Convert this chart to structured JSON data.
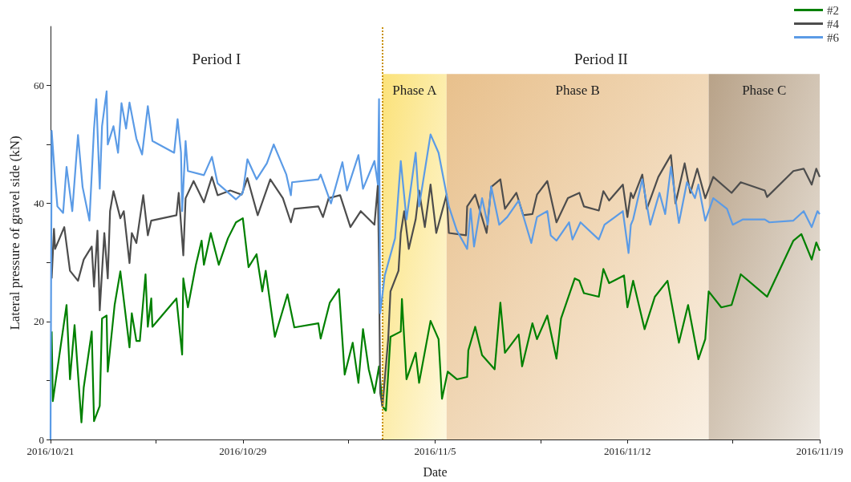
{
  "chart_data": {
    "type": "line",
    "xlabel": "Date",
    "ylabel": "Lateral pressure of gravel side (kN)",
    "annotations": [
      "Period I",
      "Period II"
    ],
    "xlim": [
      "2016-10-22",
      "2016-11-19"
    ],
    "xticks": [
      {
        "value": "2016-10-22",
        "label": "2016/10/21"
      },
      {
        "value": "2016-10-25T20:00",
        "label": null
      },
      {
        "value": "2016-10-29",
        "label": "2016/10/29"
      },
      {
        "value": "2016-11-01T20:00",
        "label": null
      },
      {
        "value": "2016-11-05",
        "label": "2016/11/5"
      },
      {
        "value": "2016-11-08T20:00",
        "label": null
      },
      {
        "value": "2016-11-12",
        "label": "2016/11/12"
      },
      {
        "value": "2016-11-15T20:00",
        "label": null
      },
      {
        "value": "2016-11-19",
        "label": "2016/11/19"
      }
    ],
    "ylim": [
      0,
      70
    ],
    "yticks": [
      0,
      {
        "value": 10,
        "label": null
      },
      20,
      {
        "value": 30,
        "label": null
      },
      40,
      {
        "value": 50,
        "label": null
      },
      60
    ],
    "legend": "top right",
    "ref_lines": [
      {
        "axis": "x",
        "value": "2016-11-03T02:00",
        "color": "#c8900a",
        "line_style": "dotted"
      }
    ],
    "bands": [
      {
        "axis": "x",
        "from": "2016-11-03T02:00",
        "to": "2016-11-05T10:00",
        "label": "Phase A",
        "color": "#fbe27a"
      },
      {
        "axis": "x",
        "from": "2016-11-05T10:00",
        "to": "2016-11-14T23:00",
        "label": "Phase B",
        "color": "#e8c08c"
      },
      {
        "axis": "x",
        "from": "2016-11-14T23:00",
        "to": "2016-11-19",
        "label": "Phase C",
        "color": "#b8a288"
      }
    ],
    "series": [
      {
        "name": "#2",
        "color": "#008000",
        "x": [
          "2016-10-22T01:00",
          "2016-10-22T02:00",
          "2016-10-22T14:00",
          "2016-10-22T17:00",
          "2016-10-22T21:00",
          "2016-10-23T03:00",
          "2016-10-23T05:00",
          "2016-10-23T12:00",
          "2016-10-23T14:00",
          "2016-10-23T19:00",
          "2016-10-23T21:00",
          "2016-10-24T01:00",
          "2016-10-24T02:00",
          "2016-10-24T08:00",
          "2016-10-24T13:00",
          "2016-10-24T21:00",
          "2016-10-24T23:00",
          "2016-10-25T03:00",
          "2016-10-25T06:00",
          "2016-10-25T11:00",
          "2016-10-25T13:00",
          "2016-10-25T16:00",
          "2016-10-25T17:00",
          "2016-10-26T14:00",
          "2016-10-26T19:00",
          "2016-10-26T20:00",
          "2016-10-27T00:00",
          "2016-10-27T07:00",
          "2016-10-27T12:00",
          "2016-10-27T14:00",
          "2016-10-27T20:00",
          "2016-10-28T03:00",
          "2016-10-28T11:00",
          "2016-10-28T18:00",
          "2016-10-29T00:00",
          "2016-10-29T05:00",
          "2016-10-29T12:00",
          "2016-10-29T17:00",
          "2016-10-29T20:00",
          "2016-10-30T04:00",
          "2016-10-30T15:00",
          "2016-10-30T21:00",
          "2016-10-31T18:00",
          "2016-10-31T20:00",
          "2016-11-01T04:00",
          "2016-11-01T12:00",
          "2016-11-01T17:00",
          "2016-11-02T00:00",
          "2016-11-02T05:00",
          "2016-11-02T09:00",
          "2016-11-02T14:00",
          "2016-11-02T19:00",
          "2016-11-02T23:00",
          "2016-11-03T02:00",
          "2016-11-03T05:00",
          "2016-11-03T09:00",
          "2016-11-03T18:00",
          "2016-11-03T19:00",
          "2016-11-03T23:00",
          "2016-11-04T07:00",
          "2016-11-04T10:00",
          "2016-11-04T20:00",
          "2016-11-05T03:00",
          "2016-11-05T06:00",
          "2016-11-05T11:00",
          "2016-11-05T19:00",
          "2016-11-06T04:00",
          "2016-11-06T05:00",
          "2016-11-06T11:00",
          "2016-11-06T17:00",
          "2016-11-07T04:00",
          "2016-11-07T09:00",
          "2016-11-07T13:00",
          "2016-11-08T01:00",
          "2016-11-08T04:00",
          "2016-11-08T13:00",
          "2016-11-08T17:00",
          "2016-11-09T02:00",
          "2016-11-09T10:00",
          "2016-11-09T14:00",
          "2016-11-10T02:00",
          "2016-11-10T06:00",
          "2016-11-10T10:00",
          "2016-11-10T23:00",
          "2016-11-11T03:00",
          "2016-11-11T08:00",
          "2016-11-11T21:00",
          "2016-11-12T00:00",
          "2016-11-12T05:00",
          "2016-11-12T15:00",
          "2016-11-13T00:00",
          "2016-11-13T11:00",
          "2016-11-13T21:00",
          "2016-11-14T05:00",
          "2016-11-14T14:00",
          "2016-11-14T20:00",
          "2016-11-14T23:00",
          "2016-11-15T10:00",
          "2016-11-15T19:00",
          "2016-11-16T03:00",
          "2016-11-17T02:00",
          "2016-11-18T01:00",
          "2016-11-18T08:00",
          "2016-11-18T17:00",
          "2016-11-18T21:00",
          "2016-11-19T00:00"
        ],
        "values": [
          18.3,
          6.5,
          22.8,
          10.2,
          19.4,
          2.9,
          8.8,
          18.3,
          3.1,
          5.7,
          20.5,
          21,
          11.5,
          22.8,
          28.5,
          15.6,
          21.4,
          16.7,
          16.7,
          28,
          19.1,
          23.9,
          19.1,
          23.9,
          14.4,
          27.3,
          22.4,
          29.6,
          33.7,
          29.6,
          35,
          29.6,
          34.1,
          36.8,
          37.5,
          29.2,
          31.4,
          25.1,
          28.6,
          17.4,
          24.6,
          19,
          19.7,
          17.1,
          23.2,
          25.5,
          11,
          16.4,
          9.6,
          18.7,
          11.9,
          7.9,
          12.4,
          5.6,
          4.9,
          17.4,
          18.3,
          23.8,
          10.2,
          14.7,
          9.6,
          20.1,
          17,
          6.9,
          11.5,
          10.2,
          10.6,
          15.1,
          19.1,
          14.3,
          11.9,
          23.2,
          14.7,
          17.8,
          12.4,
          19.7,
          17,
          21,
          13.7,
          20.5,
          27.3,
          26.9,
          24.8,
          24.2,
          28.9,
          26.5,
          27.8,
          22.4,
          26.9,
          18.7,
          24.2,
          26.9,
          16.4,
          22.8,
          13.6,
          17,
          25.1,
          22.4,
          22.8,
          28,
          24.2,
          33.7,
          34.8,
          30.5,
          33.4,
          32
        ]
      },
      {
        "name": "#4",
        "color": "#4d4d4d",
        "x": [
          "2016-10-22T01:00",
          "2016-10-22T03:00",
          "2016-10-22T04:00",
          "2016-10-22T12:00",
          "2016-10-22T17:00",
          "2016-10-23T00:00",
          "2016-10-23T05:00",
          "2016-10-23T12:00",
          "2016-10-23T14:00",
          "2016-10-23T17:00",
          "2016-10-23T19:00",
          "2016-10-23T23:00",
          "2016-10-24T02:00",
          "2016-10-24T04:00",
          "2016-10-24T07:00",
          "2016-10-24T13:00",
          "2016-10-24T16:00",
          "2016-10-24T21:00",
          "2016-10-24T23:00",
          "2016-10-25T03:00",
          "2016-10-25T09:00",
          "2016-10-25T13:00",
          "2016-10-25T16:00",
          "2016-10-26T14:00",
          "2016-10-26T16:00",
          "2016-10-26T20:00",
          "2016-10-26T22:00",
          "2016-10-27T05:00",
          "2016-10-27T14:00",
          "2016-10-27T21:00",
          "2016-10-28T02:00",
          "2016-10-28T13:00",
          "2016-10-28T23:00",
          "2016-10-29T04:00",
          "2016-10-29T13:00",
          "2016-10-30T00:00",
          "2016-10-30T11:00",
          "2016-10-30T18:00",
          "2016-10-30T21:00",
          "2016-10-31T18:00",
          "2016-10-31T22:00",
          "2016-11-01T03:00",
          "2016-11-01T13:00",
          "2016-11-01T22:00",
          "2016-11-02T07:00",
          "2016-11-02T19:00",
          "2016-11-02T22:00",
          "2016-11-02T23:00",
          "2016-11-03T00:00",
          "2016-11-03T02:00",
          "2016-11-03T07:00",
          "2016-11-03T09:00",
          "2016-11-03T16:00",
          "2016-11-03T18:00",
          "2016-11-03T21:00",
          "2016-11-04T01:00",
          "2016-11-04T07:00",
          "2016-11-04T10:00",
          "2016-11-04T15:00",
          "2016-11-04T20:00",
          "2016-11-05T01:00",
          "2016-11-05T10:00",
          "2016-11-05T12:00",
          "2016-11-06T03:00",
          "2016-11-06T04:00",
          "2016-11-06T11:00",
          "2016-11-06T21:00",
          "2016-11-07T01:00",
          "2016-11-07T09:00",
          "2016-11-07T13:00",
          "2016-11-07T23:00",
          "2016-11-08T05:00",
          "2016-11-08T13:00",
          "2016-11-08T17:00",
          "2016-11-09T02:00",
          "2016-11-09T10:00",
          "2016-11-09T20:00",
          "2016-11-10T06:00",
          "2016-11-10T10:00",
          "2016-11-10T23:00",
          "2016-11-11T03:00",
          "2016-11-11T08:00",
          "2016-11-11T20:00",
          "2016-11-12T00:00",
          "2016-11-12T03:00",
          "2016-11-12T05:00",
          "2016-11-12T13:00",
          "2016-11-12T17:00",
          "2016-11-13T03:00",
          "2016-11-13T14:00",
          "2016-11-13T18:00",
          "2016-11-14T02:00",
          "2016-11-14T07:00",
          "2016-11-14T13:00",
          "2016-11-14T20:00",
          "2016-11-15T03:00",
          "2016-11-15T19:00",
          "2016-11-16T03:00",
          "2016-11-17T00:00",
          "2016-11-17T02:00",
          "2016-11-18T01:00",
          "2016-11-18T10:00",
          "2016-11-18T17:00",
          "2016-11-18T21:00",
          "2016-11-19T00:00"
        ],
        "values": [
          27.3,
          35.7,
          32.3,
          36,
          28.6,
          26.9,
          30.5,
          32.7,
          25.9,
          35.4,
          21.9,
          35,
          27.3,
          38.7,
          42.1,
          37.5,
          38.7,
          29.9,
          35,
          33.3,
          41.4,
          34.6,
          37.1,
          38,
          41.8,
          31.2,
          40.9,
          43.8,
          40.2,
          44.5,
          41.4,
          42.2,
          41.5,
          44.3,
          38,
          44.1,
          40.9,
          36.8,
          39.1,
          39.5,
          37.7,
          40.9,
          41.4,
          36,
          38.7,
          36.4,
          43.2,
          29.2,
          7.9,
          5.6,
          17,
          25.1,
          28.6,
          35,
          38.7,
          32.3,
          37.3,
          42.2,
          36,
          43.2,
          35,
          41.5,
          35,
          34.6,
          39.5,
          41.5,
          35,
          42.8,
          44.1,
          39.1,
          41.8,
          38,
          38.2,
          41.5,
          43.8,
          36.8,
          40.9,
          41.8,
          39.5,
          38.8,
          42.1,
          40.5,
          43.2,
          37.7,
          41.8,
          40.9,
          44.9,
          39.1,
          44.5,
          48.2,
          40,
          46.8,
          41.8,
          45.9,
          40.9,
          44.5,
          41.8,
          43.6,
          42.2,
          41.1,
          45.5,
          45.9,
          43.2,
          45.9,
          44.5
        ]
      },
      {
        "name": "#6",
        "color": "#5b9be6",
        "x": [
          "2016-10-22T00:00",
          "2016-10-22T01:00",
          "2016-10-22T04:00",
          "2016-10-22T06:00",
          "2016-10-22T11:00",
          "2016-10-22T14:00",
          "2016-10-22T19:00",
          "2016-10-23T00:00",
          "2016-10-23T04:00",
          "2016-10-23T10:00",
          "2016-10-23T14:00",
          "2016-10-23T16:00",
          "2016-10-23T19:00",
          "2016-10-23T21:00",
          "2016-10-24T01:00",
          "2016-10-24T02:00",
          "2016-10-24T07:00",
          "2016-10-24T11:00",
          "2016-10-24T14:00",
          "2016-10-24T18:00",
          "2016-10-24T21:00",
          "2016-10-25T03:00",
          "2016-10-25T08:00",
          "2016-10-25T13:00",
          "2016-10-25T17:00",
          "2016-10-26T12:00",
          "2016-10-26T15:00",
          "2016-10-26T18:00",
          "2016-10-26T19:00",
          "2016-10-26T22:00",
          "2016-10-27T00:00",
          "2016-10-27T14:00",
          "2016-10-27T21:00",
          "2016-10-28T02:00",
          "2016-10-28T18:00",
          "2016-10-29T00:00",
          "2016-10-29T04:00",
          "2016-10-29T12:00",
          "2016-10-29T21:00",
          "2016-10-30T03:00",
          "2016-10-30T14:00",
          "2016-10-30T18:00",
          "2016-10-30T19:00",
          "2016-10-31T18:00",
          "2016-10-31T20:00",
          "2016-11-01T05:00",
          "2016-11-01T15:00",
          "2016-11-01T19:00",
          "2016-11-02T05:00",
          "2016-11-02T09:00",
          "2016-11-02T19:00",
          "2016-11-02T22:00",
          "2016-11-02T23:00",
          "2016-11-03T00:00",
          "2016-11-03T04:00",
          "2016-11-03T13:00",
          "2016-11-03T18:00",
          "2016-11-03T23:00",
          "2016-11-04T07:00",
          "2016-11-04T10:00",
          "2016-11-04T20:00",
          "2016-11-05T03:00",
          "2016-11-05T12:00",
          "2016-11-05T19:00",
          "2016-11-06T04:00",
          "2016-11-06T07:00",
          "2016-11-06T10:00",
          "2016-11-06T17:00",
          "2016-11-06T22:00",
          "2016-11-07T01:00",
          "2016-11-07T08:00",
          "2016-11-07T15:00",
          "2016-11-08T01:00",
          "2016-11-08T12:00",
          "2016-11-08T17:00",
          "2016-11-09T02:00",
          "2016-11-09T05:00",
          "2016-11-09T10:00",
          "2016-11-09T21:00",
          "2016-11-10T00:00",
          "2016-11-10T07:00",
          "2016-11-10T23:00",
          "2016-11-11T04:00",
          "2016-11-11T20:00",
          "2016-11-12T01:00",
          "2016-11-12T03:00",
          "2016-11-12T05:00",
          "2016-11-12T13:00",
          "2016-11-12T20:00",
          "2016-11-13T04:00",
          "2016-11-13T09:00",
          "2016-11-13T14:00",
          "2016-11-13T21:00",
          "2016-11-14T04:00",
          "2016-11-14T11:00",
          "2016-11-14T14:00",
          "2016-11-14T20:00",
          "2016-11-15T03:00",
          "2016-11-15T15:00",
          "2016-11-15T20:00",
          "2016-11-16T05:00",
          "2016-11-17T00:00",
          "2016-11-17T04:00",
          "2016-11-18T01:00",
          "2016-11-18T10:00",
          "2016-11-18T17:00",
          "2016-11-18T22:00",
          "2016-11-19T00:00"
        ],
        "values": [
          0,
          52.3,
          44.1,
          39.5,
          38.4,
          46.2,
          38.7,
          51.6,
          42.8,
          37.1,
          52.7,
          57.7,
          42.5,
          53.1,
          59,
          50,
          53.1,
          48.6,
          57,
          52.7,
          57.1,
          51,
          48.3,
          56.5,
          50.6,
          48.6,
          54.3,
          48.6,
          38.7,
          50.6,
          45.5,
          44.8,
          47.9,
          43.4,
          40.7,
          41.8,
          47.5,
          44.1,
          46.8,
          50,
          44.9,
          41.4,
          43.6,
          44.1,
          44.9,
          40,
          47,
          42.2,
          48.2,
          42.5,
          47.2,
          43.2,
          57.7,
          21.4,
          27.8,
          34.1,
          47.2,
          37.3,
          48.6,
          39.5,
          51.7,
          48.6,
          39.5,
          35.4,
          32.3,
          39.1,
          32.7,
          40.9,
          36.4,
          42.9,
          36.4,
          37.7,
          40.5,
          33.3,
          37.7,
          38.7,
          34.6,
          33.7,
          36.8,
          33.9,
          36.8,
          33.9,
          36.4,
          38.7,
          31.6,
          36.4,
          37.3,
          44.1,
          36.4,
          41.8,
          38.2,
          46.2,
          36.7,
          43.6,
          40.9,
          43.2,
          37.1,
          40.9,
          39.1,
          36.4,
          37.3,
          37.3,
          36.8,
          37.1,
          38.7,
          36,
          38.7,
          38.2
        ]
      }
    ]
  }
}
